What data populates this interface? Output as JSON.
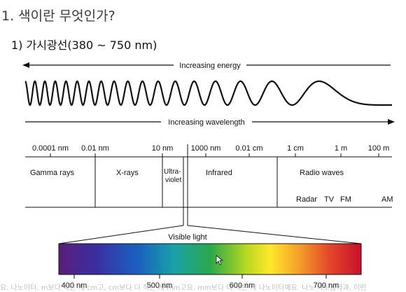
{
  "headings": {
    "title": "1. 색이란 무엇인가?",
    "subtitle": "1) 가시광선(380 ~ 750 nm)"
  },
  "diagram": {
    "energy_label": "Increasing energy",
    "wavelength_label": "Increasing wavelength",
    "scale_ticks": [
      "0.0001 nm",
      "0.01 nm",
      "10 nm",
      "1000 nm",
      "0.01 cm",
      "1 cm",
      "1 m",
      "100 m"
    ],
    "regions": {
      "gamma": "Gamma rays",
      "xrays": "X-rays",
      "ultraviolet_1": "Ultra-",
      "ultraviolet_2": "violet",
      "infrared": "Infrared",
      "radio": "Radio waves",
      "radar": "Radar",
      "tv": "TV",
      "fm": "FM",
      "am": "AM"
    },
    "visible_light_label": "Visible light",
    "spectrum_ticks": [
      "400 nm",
      "500 nm",
      "600 nm",
      "700 nm"
    ]
  },
  "caption_overlay": "요. 나노미터. m보다 작은 게 cm고, cm보다 더 작은 게 mm고요. mm보다 더 작은 게 나노미터예요. 나노 나노공학과, 이런"
}
